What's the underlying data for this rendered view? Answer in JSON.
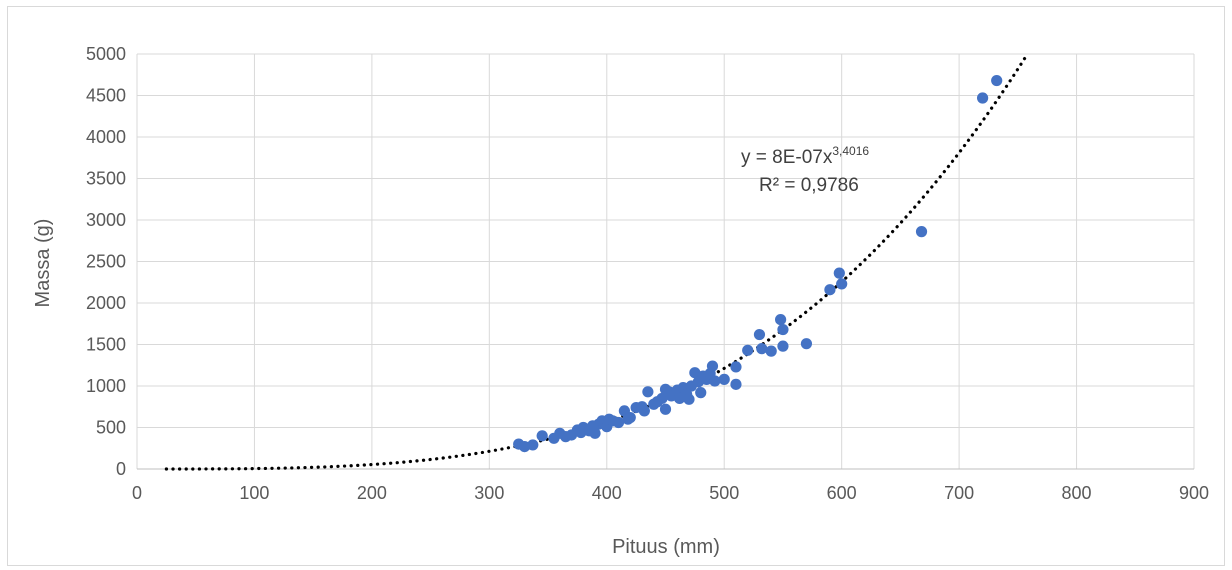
{
  "chart_data": {
    "type": "scatter",
    "title": "",
    "xlabel": "Pituus (mm)",
    "ylabel": "Massa (g)",
    "xlim": [
      0,
      900
    ],
    "ylim": [
      0,
      5000
    ],
    "x_ticks": [
      "0",
      "100",
      "200",
      "300",
      "400",
      "500",
      "600",
      "700",
      "800",
      "900"
    ],
    "y_ticks": [
      "0",
      "500",
      "1000",
      "1500",
      "2000",
      "2500",
      "3000",
      "3500",
      "4000",
      "4500",
      "5000"
    ],
    "grid": true,
    "legend": "none",
    "marker_color": "#4472C4",
    "trendline": {
      "type": "power",
      "coefficient": 8e-07,
      "exponent": 3.4016,
      "x_range": [
        25,
        770
      ],
      "style": "dotted",
      "color": "#000000",
      "equation_base": "y = 8E-07x",
      "equation_exponent": "3,4016",
      "r_squared": "R² = 0,9786"
    },
    "points": [
      [
        325,
        300
      ],
      [
        330,
        270
      ],
      [
        337,
        290
      ],
      [
        345,
        400
      ],
      [
        355,
        370
      ],
      [
        360,
        430
      ],
      [
        365,
        390
      ],
      [
        370,
        410
      ],
      [
        375,
        470
      ],
      [
        378,
        440
      ],
      [
        380,
        500
      ],
      [
        385,
        460
      ],
      [
        388,
        520
      ],
      [
        390,
        430
      ],
      [
        393,
        540
      ],
      [
        396,
        580
      ],
      [
        400,
        510
      ],
      [
        402,
        600
      ],
      [
        405,
        580
      ],
      [
        410,
        560
      ],
      [
        415,
        700
      ],
      [
        418,
        600
      ],
      [
        420,
        620
      ],
      [
        425,
        740
      ],
      [
        430,
        750
      ],
      [
        432,
        700
      ],
      [
        435,
        930
      ],
      [
        440,
        780
      ],
      [
        443,
        810
      ],
      [
        447,
        850
      ],
      [
        450,
        720
      ],
      [
        450,
        960
      ],
      [
        453,
        930
      ],
      [
        455,
        880
      ],
      [
        460,
        950
      ],
      [
        462,
        850
      ],
      [
        465,
        980
      ],
      [
        468,
        900
      ],
      [
        470,
        840
      ],
      [
        472,
        1000
      ],
      [
        475,
        1160
      ],
      [
        478,
        1050
      ],
      [
        480,
        920
      ],
      [
        482,
        1120
      ],
      [
        485,
        1080
      ],
      [
        488,
        1150
      ],
      [
        490,
        1240
      ],
      [
        492,
        1060
      ],
      [
        500,
        1080
      ],
      [
        510,
        1020
      ],
      [
        510,
        1230
      ],
      [
        520,
        1430
      ],
      [
        530,
        1620
      ],
      [
        532,
        1450
      ],
      [
        540,
        1420
      ],
      [
        548,
        1800
      ],
      [
        550,
        1680
      ],
      [
        550,
        1480
      ],
      [
        570,
        1510
      ],
      [
        590,
        2160
      ],
      [
        598,
        2360
      ],
      [
        600,
        2230
      ],
      [
        668,
        2860
      ],
      [
        720,
        4470
      ],
      [
        732,
        4680
      ]
    ]
  }
}
